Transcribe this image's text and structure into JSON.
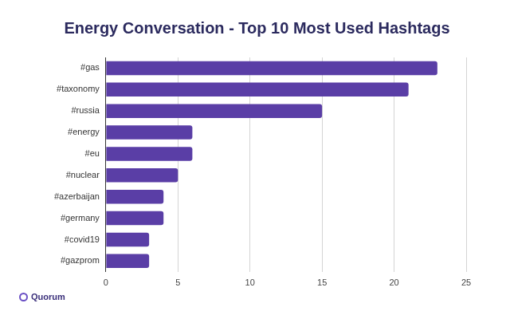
{
  "chart_data": {
    "type": "bar",
    "orientation": "horizontal",
    "title": "Energy Conversation - Top 10 Most Used Hashtags",
    "annotations": [
      "Quorum"
    ],
    "categories": [
      "#gas",
      "#taxonomy",
      "#russia",
      "#energy",
      "#eu",
      "#nuclear",
      "#azerbaijan",
      "#germany",
      "#covid19",
      "#gazprom"
    ],
    "values": [
      23,
      21,
      15,
      6,
      6,
      5,
      4,
      4,
      3,
      3
    ],
    "color": "#5a3ea6",
    "xlim": [
      0,
      25
    ],
    "xticks": [
      0,
      5,
      10,
      15,
      20,
      25
    ],
    "grid": true
  }
}
